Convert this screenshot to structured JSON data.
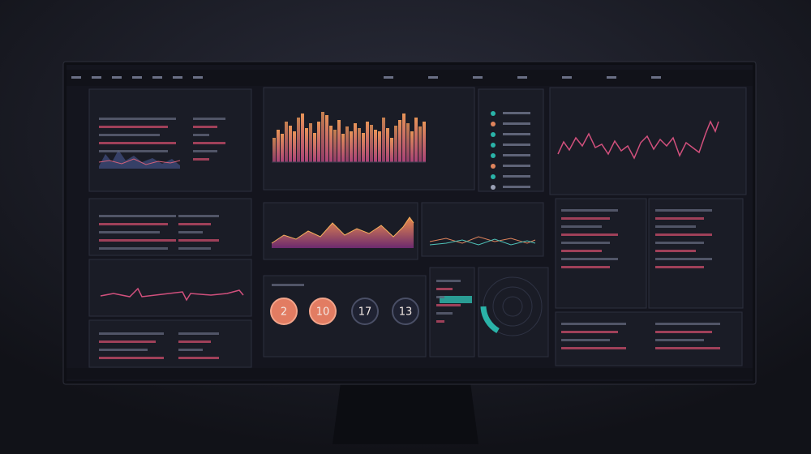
{
  "gauges": [
    {
      "label": "2"
    },
    {
      "label": "10"
    },
    {
      "label": "17"
    },
    {
      "label": "13"
    }
  ]
}
